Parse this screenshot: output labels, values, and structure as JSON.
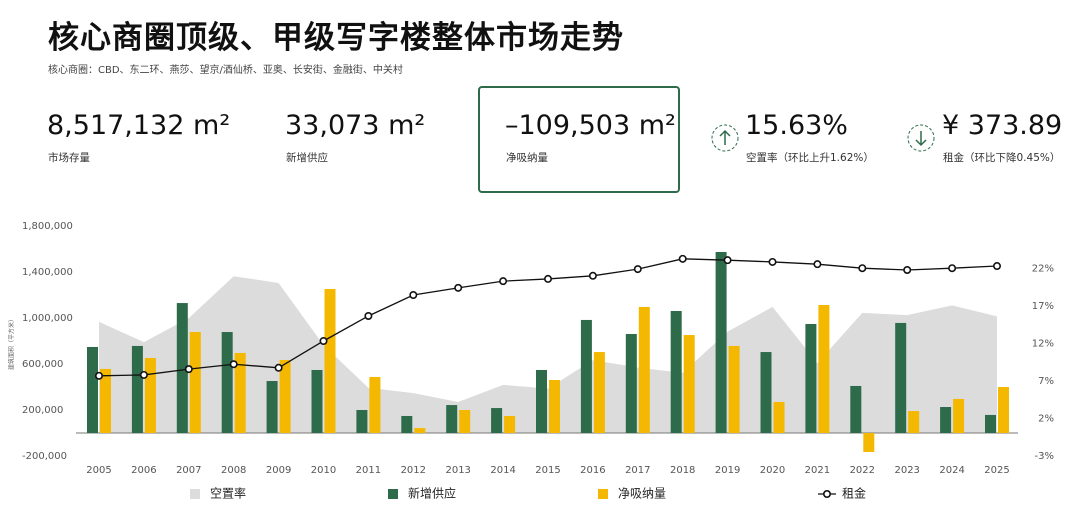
{
  "header": {
    "title": "核心商圈顶级、甲级写字楼整体市场走势",
    "subtitle": "核心商圈：CBD、东二环、燕莎、望京/酒仙桥、亚奥、长安街、金融街、中关村"
  },
  "kpis": [
    {
      "value": "8,517,132",
      "unit": "m²",
      "label": "市场存量"
    },
    {
      "value": "33,073",
      "unit": "m²",
      "label": "新增供应"
    },
    {
      "value": "–109,503",
      "unit": "m²",
      "label": "净吸纳量"
    },
    {
      "value": "15.63%",
      "label": "空置率（环比上升1.62%）"
    },
    {
      "value": "¥ 373.89",
      "label": "租金（环比下降0.45%）"
    }
  ],
  "chart_data": {
    "type": "combo",
    "y_label": "建筑面积（平方米）",
    "categories": [
      "2005",
      "2006",
      "2007",
      "2008",
      "2009",
      "2010",
      "2011",
      "2012",
      "2013",
      "2014",
      "2015",
      "2016",
      "2017",
      "2018",
      "2019",
      "2020",
      "2021",
      "2022",
      "2023",
      "2024",
      "2025"
    ],
    "ylim": [
      -200000,
      1800000
    ],
    "yticks": [
      {
        "value": -200000,
        "label": "-200,000"
      },
      {
        "value": 200000,
        "label": "200,000"
      },
      {
        "value": 600000,
        "label": "600,000"
      },
      {
        "value": 1000000,
        "label": "1,000,000"
      },
      {
        "value": 1400000,
        "label": "1,400,000"
      },
      {
        "value": 1800000,
        "label": "1,800,000"
      }
    ],
    "y2lim": [
      -3,
      27.7
    ],
    "y2ticks": [
      {
        "value": -3,
        "label": "-3%"
      },
      {
        "value": 2,
        "label": "2%"
      },
      {
        "value": 7,
        "label": "7%"
      },
      {
        "value": 12,
        "label": "12%"
      },
      {
        "value": 17,
        "label": "17%"
      },
      {
        "value": 22,
        "label": "22%"
      }
    ],
    "y3lim": [
      -51.5,
      463.5
    ],
    "series": [
      {
        "name": "空置率",
        "type": "area",
        "axis": "y2",
        "color": "#dcdcdc",
        "values": [
          14.9,
          12.2,
          15.4,
          21,
          20.1,
          11.8,
          6.1,
          5.4,
          4.2,
          6.5,
          6,
          9.8,
          8.8,
          8.1,
          13.6,
          16.9,
          9.4,
          16.1,
          15.8,
          17.1,
          15.63
        ]
      },
      {
        "name": "新增供应",
        "type": "bar",
        "color": "#2e6b4a",
        "values": [
          748000,
          757000,
          1130000,
          878000,
          452000,
          548000,
          200000,
          148000,
          243000,
          217000,
          548000,
          983000,
          861000,
          1061000,
          1574000,
          704000,
          948000,
          409000,
          957000,
          226000,
          157000
        ]
      },
      {
        "name": "净吸纳量",
        "type": "bar",
        "color": "#f5b800",
        "values": [
          557000,
          652000,
          878000,
          696000,
          635000,
          1252000,
          487000,
          43000,
          200000,
          148000,
          461000,
          704000,
          1096000,
          852000,
          757000,
          270000,
          1113000,
          -165000,
          191000,
          296000,
          400000
        ]
      },
      {
        "name": "租金",
        "type": "line",
        "axis": "y3",
        "color": "#111111",
        "values": [
          128,
          130,
          143,
          154,
          146,
          206,
          262,
          309,
          325,
          340,
          345,
          352,
          367,
          390,
          387,
          383,
          378,
          369,
          365,
          369,
          373.89
        ]
      }
    ]
  }
}
